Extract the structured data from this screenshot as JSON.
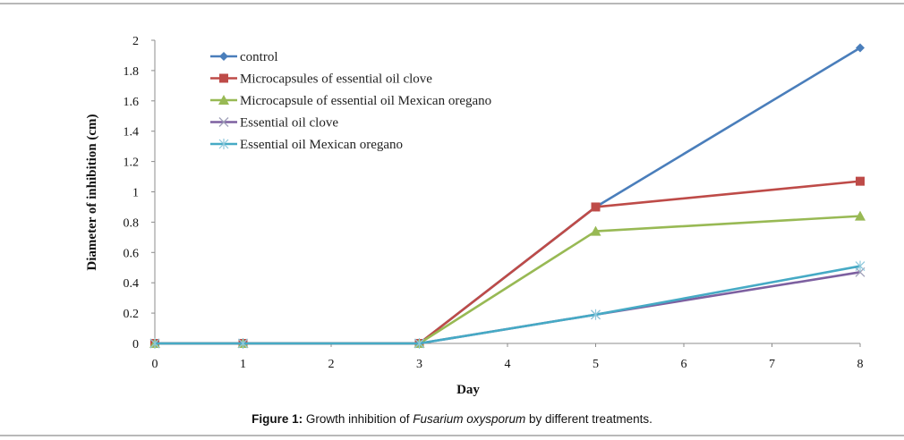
{
  "chart_data": {
    "type": "line",
    "title": "",
    "xlabel": "Day",
    "ylabel": "Diameter of inhibition (cm)",
    "x": [
      0,
      1,
      3,
      5,
      8
    ],
    "xlim": [
      0,
      8
    ],
    "ylim": [
      0,
      2
    ],
    "xticks": [
      0,
      1,
      2,
      3,
      4,
      5,
      6,
      7,
      8
    ],
    "yticks": [
      0,
      0.2,
      0.4,
      0.6,
      0.8,
      1,
      1.2,
      1.4,
      1.6,
      1.8,
      2
    ],
    "ytick_labels": [
      "0",
      "0.2",
      "0.4",
      "0.6",
      "0.8",
      "1",
      "1.2",
      "1.4",
      "1.6",
      "1.8",
      "2"
    ],
    "grid": false,
    "legend_position": "top-left",
    "series": [
      {
        "name": "control",
        "color": "#4a7ebb",
        "marker": "diamond",
        "values": [
          0,
          0,
          0,
          0.9,
          1.95
        ]
      },
      {
        "name": "Microcapsules of essential oil clove",
        "color": "#be4b48",
        "marker": "square",
        "values": [
          0,
          0,
          0,
          0.9,
          1.07
        ]
      },
      {
        "name": "Microcapsule of essential oil Mexican oregano",
        "color": "#98b954",
        "marker": "triangle",
        "values": [
          0,
          0,
          0,
          0.74,
          0.84
        ]
      },
      {
        "name": "Essential oil clove",
        "color": "#7d60a0",
        "marker": "x",
        "values": [
          0,
          0,
          0,
          0.19,
          0.47
        ]
      },
      {
        "name": "Essential oil Mexican oregano",
        "color": "#46aac5",
        "marker": "star",
        "values": [
          0,
          0,
          0,
          0.19,
          0.51
        ]
      }
    ]
  },
  "caption": {
    "label": "Figure 1:",
    "text_before": " Growth inhibition of ",
    "species": "Fusarium oxysporum",
    "text_after": " by different treatments."
  }
}
